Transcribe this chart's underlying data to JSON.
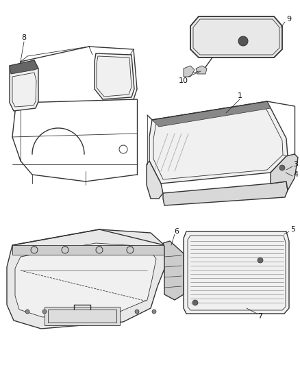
{
  "background_color": "#ffffff",
  "line_color": "#333333",
  "gray_color": "#aaaaaa",
  "label_color": "#111111",
  "figsize": [
    4.38,
    5.33
  ],
  "dpi": 100,
  "fig_width": 438,
  "fig_height": 533
}
